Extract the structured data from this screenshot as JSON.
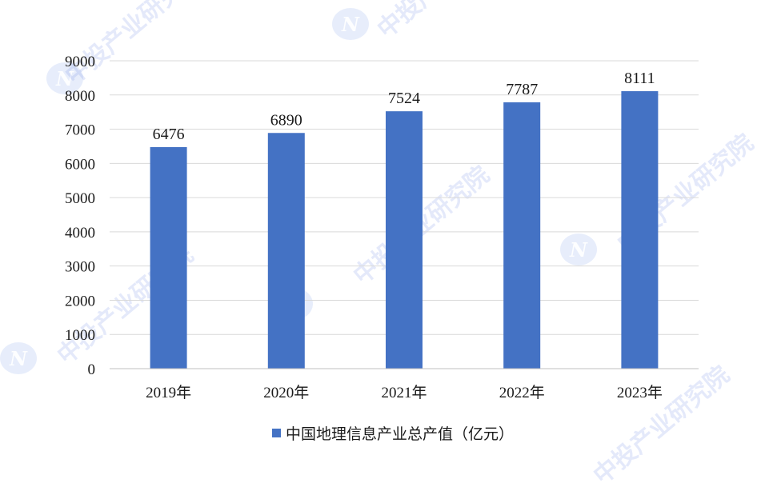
{
  "chart_data": {
    "type": "bar",
    "categories": [
      "2019年",
      "2020年",
      "2021年",
      "2022年",
      "2023年"
    ],
    "series": [
      {
        "name": "中国地理信息产业总产值（亿元）",
        "values": [
          6476,
          6890,
          7524,
          7787,
          8111
        ]
      }
    ],
    "ylim": [
      0,
      9000
    ],
    "yticks": [
      0,
      1000,
      2000,
      3000,
      4000,
      5000,
      6000,
      7000,
      8000,
      9000
    ],
    "grid": true,
    "legend_position": "bottom",
    "colors": {
      "bar": "#4472C4",
      "grid": "#d9d9d9",
      "axis": "#bfbfbf"
    }
  },
  "watermark": {
    "text": "中投产业研究院",
    "logo_text": "N"
  }
}
